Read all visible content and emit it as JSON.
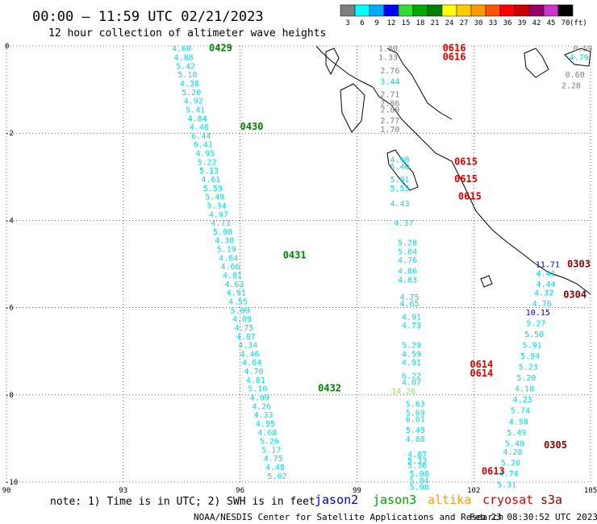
{
  "header": {
    "title": "00:00 — 11:59 UTC 02/21/2023",
    "subtitle": "12 hour collection of altimeter wave heights"
  },
  "colorbar": {
    "labels": [
      "3",
      "6",
      "9",
      "12",
      "15",
      "18",
      "21",
      "24",
      "27",
      "30",
      "33",
      "36",
      "39",
      "42",
      "45",
      "70"
    ],
    "unit": "(ft)",
    "colors": [
      "#7f7f7f",
      "#00ffff",
      "#00aaff",
      "#0000ff",
      "#33dd33",
      "#00aa00",
      "#008000",
      "#ffff00",
      "#ffcc00",
      "#ff9900",
      "#ff5500",
      "#ff0000",
      "#cc0000",
      "#990066",
      "#cc33cc",
      "#000000"
    ]
  },
  "note": "note: 1) Time is in UTC; 2) SWH is in feet",
  "satellites": [
    {
      "name": "jason2",
      "color": "#0000cc"
    },
    {
      "name": "jason3",
      "color": "#00a000"
    },
    {
      "name": "altika",
      "color": "#ff9900"
    },
    {
      "name": "cryosat",
      "color": "#dd0000"
    },
    {
      "name": "s3a",
      "color": "#880000"
    }
  ],
  "footer": {
    "org": "NOAA/NESDIS Center for Satellite Applications and Research",
    "timestamp": "Feb 23 08:30:52 UTC 2023"
  },
  "chart_data": {
    "type": "scatter",
    "x_ticks": [
      "90",
      "93",
      "96",
      "99",
      "102",
      "105"
    ],
    "y_ticks": [
      "0",
      "-2",
      "-4",
      "-6",
      "-8",
      "-10"
    ],
    "xlim": [
      90,
      105
    ],
    "ylim": [
      -10,
      0
    ],
    "grid": true,
    "tracks": [
      {
        "labels": [
          {
            "text": "0429",
            "lon": 95.2,
            "lat": -0.05
          },
          {
            "text": "0430",
            "lon": 96.0,
            "lat": -1.85
          },
          {
            "text": "0431",
            "lon": 97.1,
            "lat": -4.8
          },
          {
            "text": "0432",
            "lon": 98.0,
            "lat": -7.85
          }
        ],
        "color": "#008000",
        "values": [
          [
            "4.60",
            94.5,
            -0.05
          ],
          [
            "4.88",
            94.55,
            -0.25
          ],
          [
            "5.42",
            94.6,
            -0.45
          ],
          [
            "5.10",
            94.65,
            -0.65
          ],
          [
            "4.38",
            94.7,
            -0.85
          ],
          [
            "5.20",
            94.75,
            -1.05
          ],
          [
            "4.92",
            94.8,
            -1.25
          ],
          [
            "5.41",
            94.85,
            -1.45
          ],
          [
            "4.84",
            94.9,
            -1.65
          ],
          [
            "4.46",
            94.95,
            -1.85
          ],
          [
            "6.44",
            95.0,
            -2.05
          ],
          [
            "6.41",
            95.05,
            -2.25
          ],
          [
            "4.95",
            95.1,
            -2.45
          ],
          [
            "5.22",
            95.15,
            -2.65
          ],
          [
            "5.13",
            95.2,
            -2.85
          ],
          [
            "4.61",
            95.25,
            -3.05
          ],
          [
            "5.59",
            95.3,
            -3.25
          ],
          [
            "5.49",
            95.35,
            -3.45
          ],
          [
            "5.34",
            95.4,
            -3.65
          ],
          [
            "4.97",
            95.45,
            -3.85
          ],
          [
            "4.73",
            95.5,
            -4.05
          ],
          [
            "5.00",
            95.55,
            -4.25
          ],
          [
            "4.38",
            95.6,
            -4.45
          ],
          [
            "5.19",
            95.65,
            -4.65
          ],
          [
            "4.84",
            95.7,
            -4.85
          ],
          [
            "4.66",
            95.75,
            -5.05
          ],
          [
            "4.81",
            95.8,
            -5.25
          ],
          [
            "4.63",
            95.85,
            -5.45
          ],
          [
            "4.91",
            95.9,
            -5.65
          ],
          [
            "4.55",
            95.95,
            -5.85
          ],
          [
            "5.09",
            96.0,
            -6.05
          ],
          [
            "4.09",
            96.05,
            -6.25
          ],
          [
            "4.75",
            96.1,
            -6.45
          ],
          [
            "4.07",
            96.15,
            -6.65
          ],
          [
            "4.34",
            96.2,
            -6.85
          ],
          [
            "4.46",
            96.25,
            -7.05
          ],
          [
            "4.64",
            96.3,
            -7.25
          ],
          [
            "4.70",
            96.35,
            -7.45
          ],
          [
            "4.81",
            96.4,
            -7.65
          ],
          [
            "5.10",
            96.45,
            -7.85
          ],
          [
            "4.09",
            96.5,
            -8.05
          ],
          [
            "4.26",
            96.55,
            -8.25
          ],
          [
            "4.33",
            96.6,
            -8.45
          ],
          [
            "4.95",
            96.65,
            -8.65
          ],
          [
            "4.68",
            96.7,
            -8.85
          ],
          [
            "5.26",
            96.75,
            -9.05
          ],
          [
            "5.17",
            96.8,
            -9.25
          ],
          [
            "4.75",
            96.85,
            -9.45
          ],
          [
            "4.48",
            96.9,
            -9.65
          ],
          [
            "5.02",
            96.95,
            -9.85
          ]
        ]
      }
    ],
    "east_tracks": {
      "pass_labels": [
        {
          "text": "0616",
          "lon": 101.2,
          "lat": -0.05,
          "color": "#dd0000"
        },
        {
          "text": "0616",
          "lon": 101.2,
          "lat": -0.25,
          "color": "#dd0000"
        },
        {
          "text": "0615",
          "lon": 101.5,
          "lat": -2.65,
          "color": "#dd0000"
        },
        {
          "text": "0615",
          "lon": 101.5,
          "lat": -3.05,
          "color": "#dd0000"
        },
        {
          "text": "0615",
          "lon": 101.6,
          "lat": -3.45,
          "color": "#dd0000"
        },
        {
          "text": "0614",
          "lon": 101.9,
          "lat": -7.3,
          "color": "#dd0000"
        },
        {
          "text": "0614",
          "lon": 101.9,
          "lat": -7.5,
          "color": "#dd0000"
        },
        {
          "text": "0613",
          "lon": 102.2,
          "lat": -9.75,
          "color": "#dd0000"
        },
        {
          "text": "0303",
          "lon": 104.4,
          "lat": -5.0,
          "color": "#880000"
        },
        {
          "text": "0304",
          "lon": 104.3,
          "lat": -5.7,
          "color": "#880000"
        },
        {
          "text": "0305",
          "lon": 103.8,
          "lat": -9.15,
          "color": "#880000"
        }
      ],
      "values": [
        [
          "1.80",
          99.8,
          -0.05,
          "#7f7f7f"
        ],
        [
          "1.33",
          99.8,
          -0.25,
          "#7f7f7f"
        ],
        [
          "2.76",
          99.85,
          -0.55,
          "#7f7f7f"
        ],
        [
          "3.44",
          99.85,
          -0.8,
          "#00dddd"
        ],
        [
          "2.71",
          99.85,
          -1.1,
          "#7f7f7f"
        ],
        [
          "2.86",
          99.85,
          -1.3,
          "#7f7f7f"
        ],
        [
          "2.89",
          99.85,
          -1.45,
          "#7f7f7f"
        ],
        [
          "2.77",
          99.85,
          -1.7,
          "#7f7f7f"
        ],
        [
          "1.70",
          99.85,
          -1.9,
          "#7f7f7f"
        ],
        [
          "4.98",
          100.1,
          -2.6,
          "#00dddd"
        ],
        [
          "5.40",
          100.1,
          -2.75,
          "#00dddd"
        ],
        [
          "5.01",
          100.1,
          -3.05,
          "#00dddd"
        ],
        [
          "5.53",
          100.1,
          -3.25,
          "#00dddd"
        ],
        [
          "4.43",
          100.1,
          -3.6,
          "#00dddd"
        ],
        [
          "4.37",
          100.2,
          -4.05,
          "#00dddd"
        ],
        [
          "5.28",
          100.3,
          -4.5,
          "#00dddd"
        ],
        [
          "5.04",
          100.3,
          -4.7,
          "#00dddd"
        ],
        [
          "4.76",
          100.3,
          -4.9,
          "#00dddd"
        ],
        [
          "4.86",
          100.3,
          -5.15,
          "#00dddd"
        ],
        [
          "4.83",
          100.3,
          -5.35,
          "#00dddd"
        ],
        [
          "4.75",
          100.35,
          -5.75,
          "#00dddd"
        ],
        [
          "4.65",
          100.35,
          -5.9,
          "#00dddd"
        ],
        [
          "4.91",
          100.4,
          -6.2,
          "#00dddd"
        ],
        [
          "4.73",
          100.4,
          -6.4,
          "#00dddd"
        ],
        [
          "5.29",
          100.4,
          -6.85,
          "#00dddd"
        ],
        [
          "4.59",
          100.4,
          -7.05,
          "#00dddd"
        ],
        [
          "4.91",
          100.4,
          -7.25,
          "#00dddd"
        ],
        [
          "6.22",
          100.4,
          -7.55,
          "#00dddd"
        ],
        [
          "4.07",
          100.4,
          -7.7,
          "#00dddd"
        ],
        [
          "14.26",
          100.2,
          -7.9,
          "#99dd66"
        ],
        [
          "5.63",
          100.5,
          -8.2,
          "#00dddd"
        ],
        [
          "5.69",
          100.5,
          -8.4,
          "#00dddd"
        ],
        [
          "6.01",
          100.5,
          -8.55,
          "#00dddd"
        ],
        [
          "5.49",
          100.5,
          -8.8,
          "#00dddd"
        ],
        [
          "4.88",
          100.5,
          -9.0,
          "#00dddd"
        ],
        [
          "4.87",
          100.55,
          -9.35,
          "#00dddd"
        ],
        [
          "5.33",
          100.55,
          -9.5,
          "#00dddd"
        ],
        [
          "5.36",
          100.55,
          -9.6,
          "#00dddd"
        ],
        [
          "5.08",
          100.6,
          -9.8,
          "#00dddd"
        ],
        [
          "5.84",
          100.6,
          -9.95,
          "#00dddd"
        ],
        [
          "5.08",
          100.6,
          -10.1,
          "#00dddd"
        ],
        [
          "11.71",
          103.9,
          -5.0,
          "#0000cc"
        ],
        [
          "4.41",
          103.85,
          -5.2,
          "#00dddd"
        ],
        [
          "4.44",
          103.85,
          -5.45,
          "#00dddd"
        ],
        [
          "4.32",
          103.8,
          -5.65,
          "#00dddd"
        ],
        [
          "4.76",
          103.75,
          -5.9,
          "#00dddd"
        ],
        [
          "10.15",
          103.65,
          -6.1,
          "#0000cc"
        ],
        [
          "5.27",
          103.6,
          -6.35,
          "#00dddd"
        ],
        [
          "5.50",
          103.55,
          -6.6,
          "#00dddd"
        ],
        [
          "5.91",
          103.5,
          -6.85,
          "#00dddd"
        ],
        [
          "5.94",
          103.45,
          -7.1,
          "#00dddd"
        ],
        [
          "5.23",
          103.4,
          -7.35,
          "#00dddd"
        ],
        [
          "5.20",
          103.35,
          -7.6,
          "#00dddd"
        ],
        [
          "4.18",
          103.3,
          -7.85,
          "#00dddd"
        ],
        [
          "4.23",
          103.25,
          -8.1,
          "#00dddd"
        ],
        [
          "5.74",
          103.2,
          -8.35,
          "#00dddd"
        ],
        [
          "4.58",
          103.15,
          -8.6,
          "#00dddd"
        ],
        [
          "5.49",
          103.1,
          -8.85,
          "#00dddd"
        ],
        [
          "5.48",
          103.05,
          -9.1,
          "#00dddd"
        ],
        [
          "4.28",
          103.0,
          -9.3,
          "#00dddd"
        ],
        [
          "5.20",
          102.95,
          -9.55,
          "#00dddd"
        ],
        [
          "4.74",
          102.9,
          -9.8,
          "#00dddd"
        ],
        [
          "5.31",
          102.85,
          -10.05,
          "#00dddd"
        ],
        [
          "0.59",
          104.8,
          -0.05,
          "#7f7f7f"
        ],
        [
          "4.79",
          104.7,
          -0.25,
          "#00dddd"
        ],
        [
          "0.60",
          104.6,
          -0.65,
          "#7f7f7f"
        ],
        [
          "2.28",
          104.5,
          -0.9,
          "#7f7f7f"
        ]
      ]
    }
  }
}
